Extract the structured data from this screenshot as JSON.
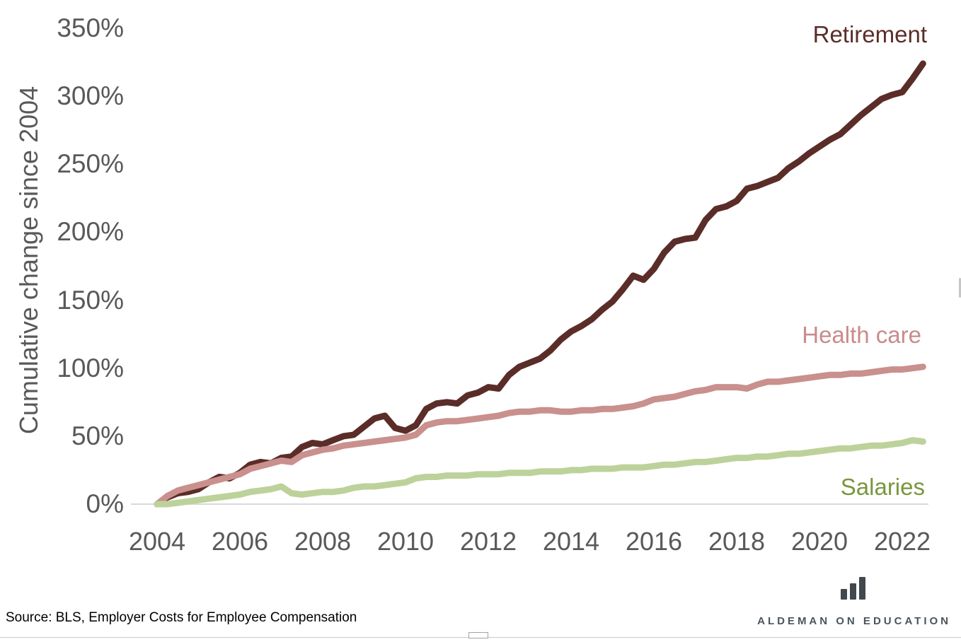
{
  "page": {
    "source_note": "Source: BLS, Employer Costs for Employee Compensation",
    "logo": {
      "icon": "bar-chart-logo",
      "text": "ALDEMAN ON EDUCATION"
    },
    "colors": {
      "axis_text": "#595959",
      "baseline": "#d9d9d9",
      "logo_mark": "#41484e",
      "logo_text": "#4b545b"
    }
  },
  "chart_data": {
    "type": "line",
    "title": "",
    "y_axis_title": "Cumulative change since 2004",
    "xlabel": "",
    "ylabel": "Cumulative change since 2004",
    "x_start": 2004,
    "x_step": 0.25,
    "xlim": [
      2004,
      2022.5
    ],
    "ylim": [
      0,
      350
    ],
    "grid": "baseline-only",
    "legend_position": "direct-line-labels-right",
    "y_tick_values": [
      0,
      50,
      100,
      150,
      200,
      250,
      300,
      350
    ],
    "y_tick_suffix": "%",
    "x_tick_years": [
      2004,
      2006,
      2008,
      2010,
      2012,
      2014,
      2016,
      2018,
      2020,
      2022
    ],
    "x_tick_labels": [
      "2004",
      "2006",
      "2008",
      "2010",
      "2012",
      "2014",
      "2016",
      "2018",
      "2020",
      "2022"
    ],
    "series": [
      {
        "name": "Retirement",
        "color": "#5b2d28",
        "label_color": "#5b2d28",
        "values": [
          0,
          5,
          8,
          9,
          11,
          16,
          20,
          19,
          23,
          29,
          31,
          30,
          34,
          35,
          42,
          45,
          44,
          47,
          50,
          51,
          57,
          63,
          65,
          56,
          54,
          58,
          70,
          74,
          75,
          74,
          80,
          82,
          86,
          85,
          95,
          101,
          104,
          107,
          113,
          121,
          127,
          131,
          136,
          143,
          149,
          158,
          168,
          165,
          173,
          185,
          193,
          195,
          196,
          209,
          217,
          219,
          223,
          232,
          234,
          237,
          240,
          247,
          252,
          258,
          263,
          268,
          272,
          279,
          286,
          292,
          298,
          301,
          303,
          313,
          324
        ]
      },
      {
        "name": "Health care",
        "color": "#c9908d",
        "label_color": "#c98b8b",
        "values": [
          0,
          6,
          10,
          12,
          14,
          16,
          18,
          20,
          22,
          26,
          28,
          30,
          32,
          31,
          36,
          38,
          40,
          41,
          43,
          44,
          45,
          46,
          47,
          48,
          49,
          51,
          58,
          60,
          61,
          61,
          62,
          63,
          64,
          65,
          67,
          68,
          68,
          69,
          69,
          68,
          68,
          69,
          69,
          70,
          70,
          71,
          72,
          74,
          77,
          78,
          79,
          81,
          83,
          84,
          86,
          86,
          86,
          85,
          88,
          90,
          90,
          91,
          92,
          93,
          94,
          95,
          95,
          96,
          96,
          97,
          98,
          99,
          99,
          100,
          101
        ]
      },
      {
        "name": "Salaries",
        "color": "#bdd29b",
        "label_color": "#78973e",
        "values": [
          0,
          0,
          1,
          2,
          3,
          4,
          5,
          6,
          7,
          9,
          10,
          11,
          13,
          8,
          7,
          8,
          9,
          9,
          10,
          12,
          13,
          13,
          14,
          15,
          16,
          19,
          20,
          20,
          21,
          21,
          21,
          22,
          22,
          22,
          23,
          23,
          23,
          24,
          24,
          24,
          25,
          25,
          26,
          26,
          26,
          27,
          27,
          27,
          28,
          29,
          29,
          30,
          31,
          31,
          32,
          33,
          34,
          34,
          35,
          35,
          36,
          37,
          37,
          38,
          39,
          40,
          41,
          41,
          42,
          43,
          43,
          44,
          45,
          47,
          46
        ]
      }
    ]
  }
}
